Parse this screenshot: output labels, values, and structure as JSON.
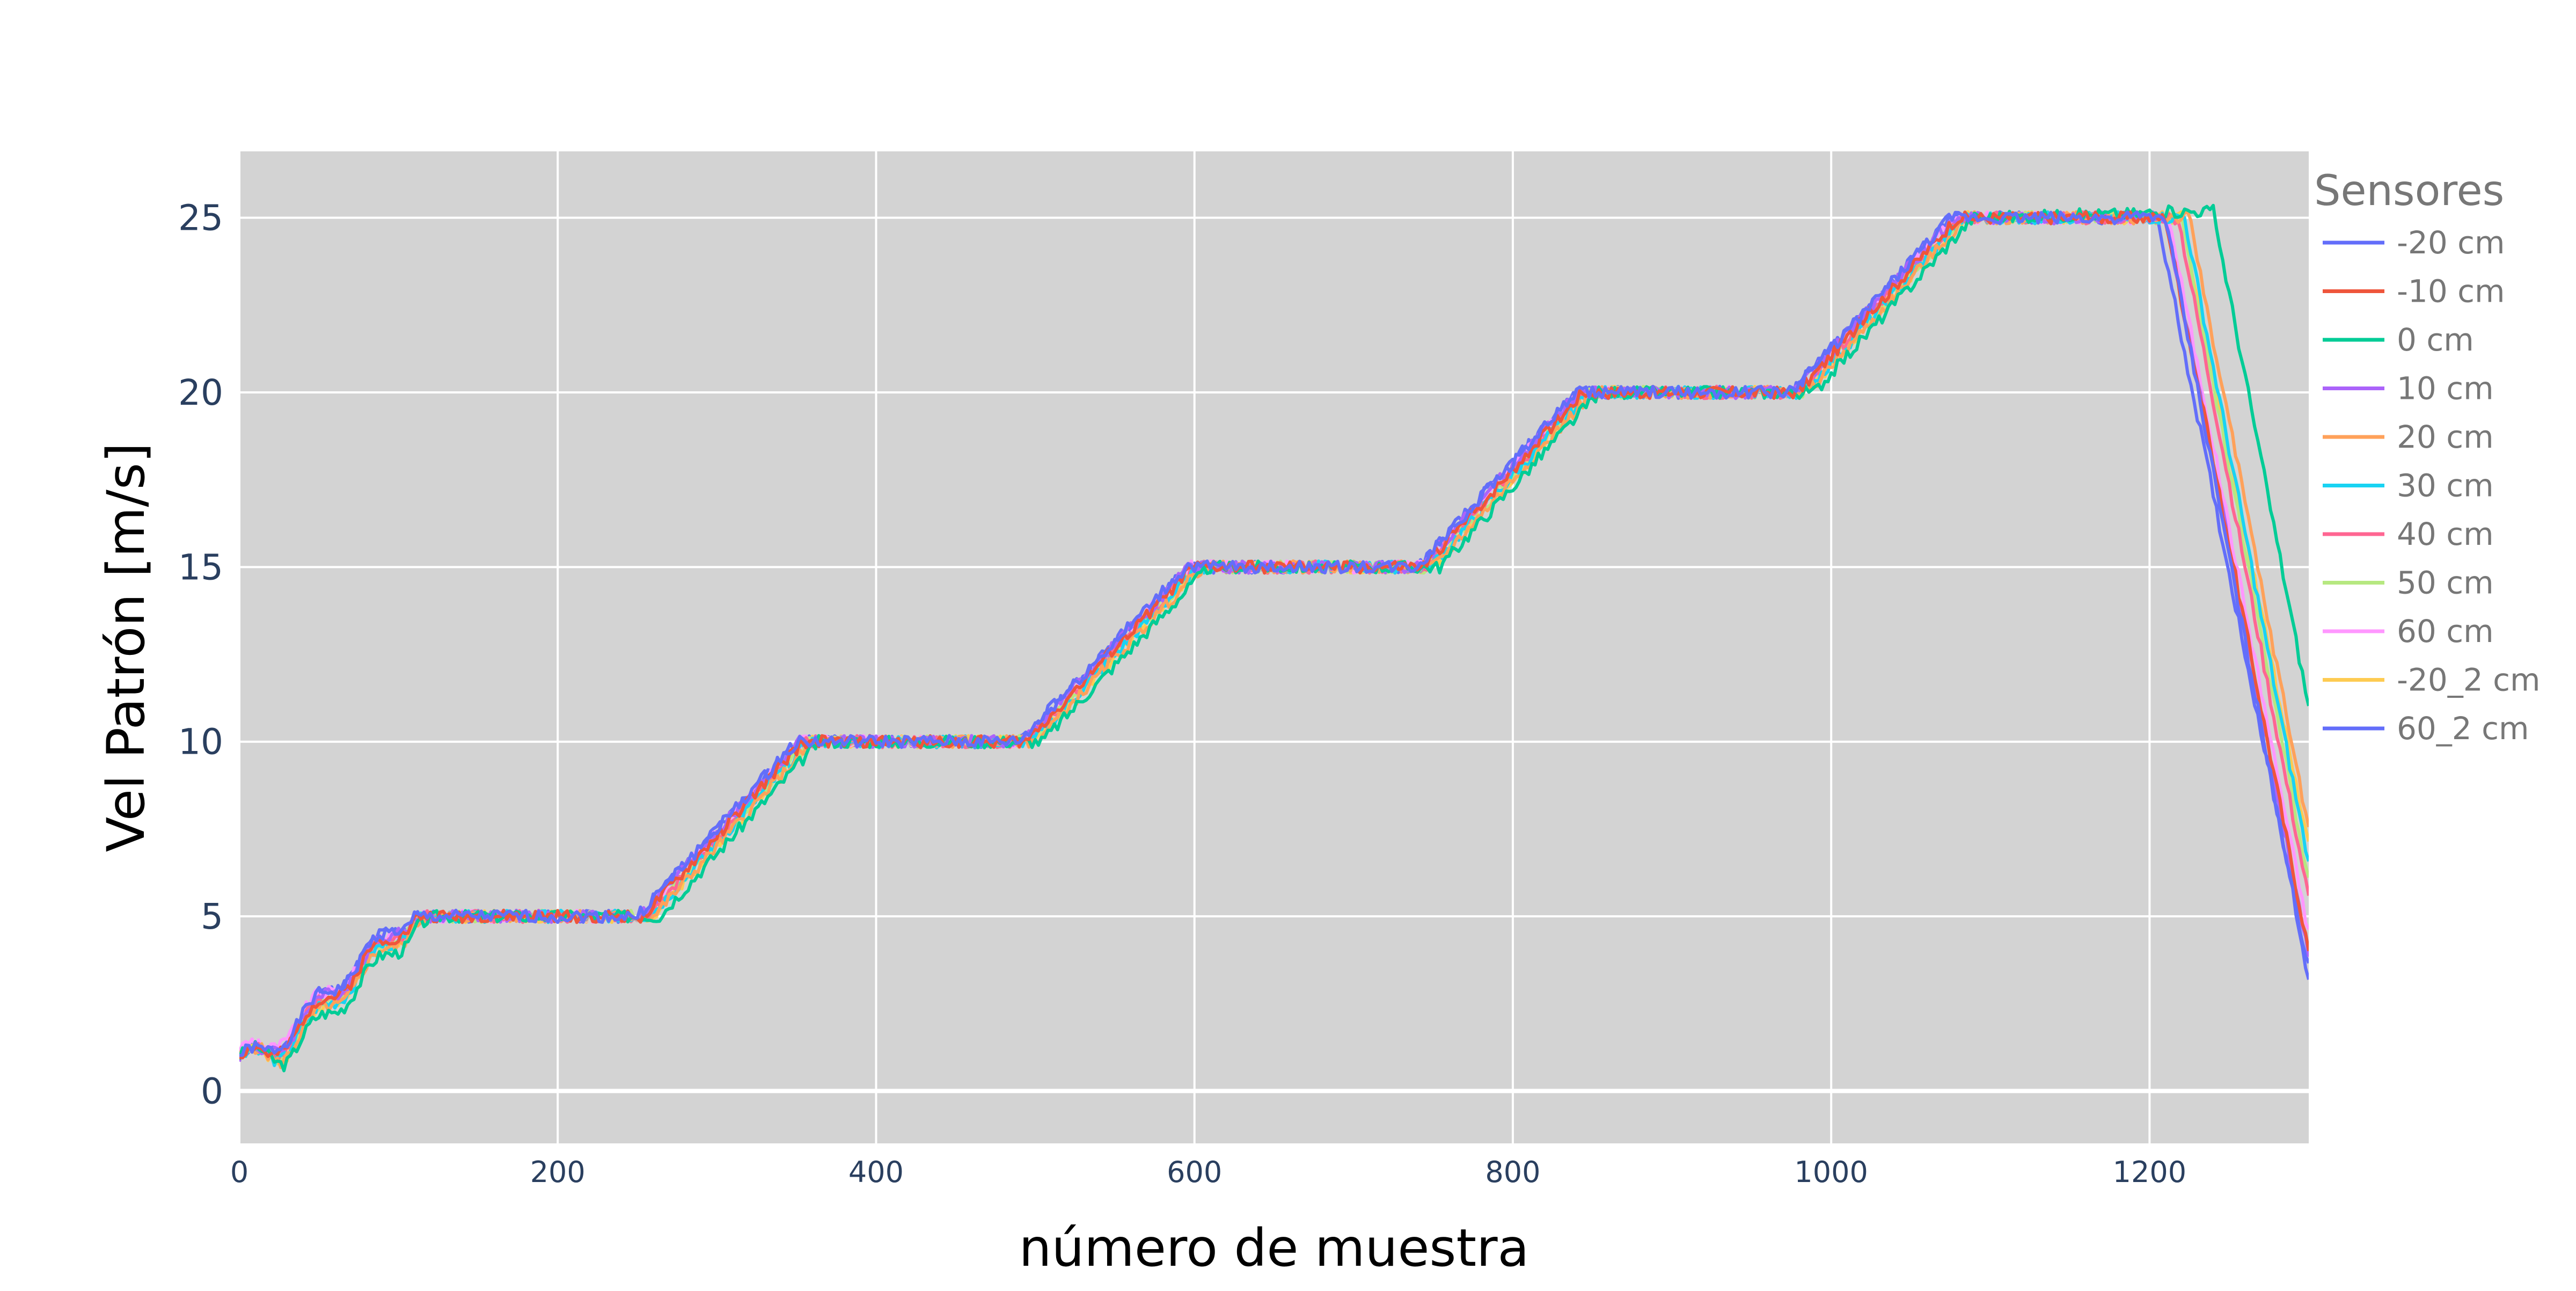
{
  "chart_data": {
    "type": "line",
    "title": "",
    "xlabel": "número de muestra",
    "ylabel": "Vel Patrón [m/s]",
    "xlim": [
      0,
      1300
    ],
    "ylim": [
      -1.5,
      26.9
    ],
    "x_ticks": [
      0,
      200,
      400,
      600,
      800,
      1000,
      1200
    ],
    "y_ticks": [
      0,
      5,
      10,
      15,
      20,
      25
    ],
    "grid": true,
    "plot_background": "#d3d3d3",
    "legend": {
      "title": "Sensores",
      "position": "right"
    },
    "series": [
      {
        "name": "-20 cm",
        "color": "#636efa",
        "lag": 0,
        "noise_seed": 1,
        "points": [
          [
            0,
            1.0
          ],
          [
            15,
            1.0
          ],
          [
            100,
            4.8
          ],
          [
            110,
            5.0
          ],
          [
            250,
            5.0
          ],
          [
            350,
            10.0
          ],
          [
            490,
            10.0
          ],
          [
            595,
            15.0
          ],
          [
            740,
            15.0
          ],
          [
            840,
            20.0
          ],
          [
            975,
            20.0
          ],
          [
            1075,
            25.0
          ],
          [
            1210,
            25.0
          ],
          [
            1300,
            3.2
          ]
        ]
      },
      {
        "name": "-10 cm",
        "color": "#ef553b",
        "lag": 4,
        "noise_seed": 2,
        "points": [
          [
            0,
            1.0
          ],
          [
            15,
            1.0
          ],
          [
            100,
            4.8
          ],
          [
            110,
            5.0
          ],
          [
            250,
            5.0
          ],
          [
            350,
            10.0
          ],
          [
            490,
            10.0
          ],
          [
            595,
            15.0
          ],
          [
            740,
            15.0
          ],
          [
            840,
            20.0
          ],
          [
            975,
            20.0
          ],
          [
            1075,
            25.0
          ],
          [
            1210,
            25.0
          ],
          [
            1300,
            4.0
          ]
        ]
      },
      {
        "name": "0 cm",
        "color": "#00cc96",
        "lag": 14,
        "noise_seed": 3,
        "points": [
          [
            0,
            1.0
          ],
          [
            15,
            1.0
          ],
          [
            100,
            4.8
          ],
          [
            110,
            5.0
          ],
          [
            250,
            5.0
          ],
          [
            350,
            10.0
          ],
          [
            490,
            10.0
          ],
          [
            595,
            15.0
          ],
          [
            740,
            15.0
          ],
          [
            840,
            20.0
          ],
          [
            975,
            20.0
          ],
          [
            1075,
            25.0
          ],
          [
            1240,
            25.2
          ],
          [
            1300,
            11.0
          ]
        ]
      },
      {
        "name": "10 cm",
        "color": "#ab63fa",
        "lag": 2,
        "noise_seed": 4,
        "points": [
          [
            0,
            1.0
          ],
          [
            15,
            1.0
          ],
          [
            100,
            4.8
          ],
          [
            110,
            5.0
          ],
          [
            250,
            5.0
          ],
          [
            350,
            10.0
          ],
          [
            490,
            10.0
          ],
          [
            595,
            15.0
          ],
          [
            740,
            15.0
          ],
          [
            840,
            20.0
          ],
          [
            975,
            20.0
          ],
          [
            1075,
            25.0
          ],
          [
            1210,
            25.0
          ],
          [
            1300,
            3.8
          ]
        ]
      },
      {
        "name": "20 cm",
        "color": "#ffa15a",
        "lag": 10,
        "noise_seed": 5,
        "points": [
          [
            0,
            1.0
          ],
          [
            15,
            1.0
          ],
          [
            100,
            4.8
          ],
          [
            110,
            5.0
          ],
          [
            250,
            5.0
          ],
          [
            350,
            10.0
          ],
          [
            490,
            10.0
          ],
          [
            595,
            15.0
          ],
          [
            740,
            15.0
          ],
          [
            840,
            20.0
          ],
          [
            975,
            20.0
          ],
          [
            1075,
            25.0
          ],
          [
            1225,
            25.0
          ],
          [
            1300,
            7.5
          ]
        ]
      },
      {
        "name": "30 cm",
        "color": "#19d3f3",
        "lag": 8,
        "noise_seed": 6,
        "points": [
          [
            0,
            1.0
          ],
          [
            15,
            1.0
          ],
          [
            100,
            4.8
          ],
          [
            110,
            5.0
          ],
          [
            250,
            5.0
          ],
          [
            350,
            10.0
          ],
          [
            490,
            10.0
          ],
          [
            595,
            15.0
          ],
          [
            740,
            15.0
          ],
          [
            840,
            20.0
          ],
          [
            975,
            20.0
          ],
          [
            1075,
            25.0
          ],
          [
            1222,
            25.0
          ],
          [
            1300,
            6.5
          ]
        ]
      },
      {
        "name": "40 cm",
        "color": "#ff6692",
        "lag": 5,
        "noise_seed": 7,
        "points": [
          [
            0,
            1.0
          ],
          [
            15,
            1.0
          ],
          [
            100,
            4.8
          ],
          [
            110,
            5.0
          ],
          [
            250,
            5.0
          ],
          [
            350,
            10.0
          ],
          [
            490,
            10.0
          ],
          [
            595,
            15.0
          ],
          [
            740,
            15.0
          ],
          [
            840,
            20.0
          ],
          [
            975,
            20.0
          ],
          [
            1075,
            25.0
          ],
          [
            1218,
            25.0
          ],
          [
            1300,
            5.5
          ]
        ]
      },
      {
        "name": "50 cm",
        "color": "#b6e880",
        "lag": 7,
        "noise_seed": 8,
        "points": [
          [
            0,
            1.0
          ],
          [
            15,
            1.0
          ],
          [
            100,
            4.8
          ],
          [
            110,
            5.0
          ],
          [
            250,
            5.0
          ],
          [
            350,
            10.0
          ],
          [
            490,
            10.0
          ],
          [
            595,
            15.0
          ],
          [
            740,
            15.0
          ],
          [
            840,
            20.0
          ],
          [
            975,
            20.0
          ],
          [
            1075,
            25.0
          ],
          [
            1220,
            25.0
          ],
          [
            1300,
            6.0
          ]
        ]
      },
      {
        "name": "60 cm",
        "color": "#ff97ff",
        "lag": 3,
        "noise_seed": 9,
        "points": [
          [
            0,
            1.2
          ],
          [
            15,
            1.2
          ],
          [
            100,
            4.8
          ],
          [
            110,
            5.0
          ],
          [
            250,
            5.0
          ],
          [
            350,
            10.0
          ],
          [
            490,
            10.0
          ],
          [
            595,
            15.0
          ],
          [
            740,
            15.0
          ],
          [
            840,
            20.0
          ],
          [
            975,
            20.0
          ],
          [
            1075,
            25.0
          ],
          [
            1212,
            25.0
          ],
          [
            1300,
            4.5
          ]
        ]
      },
      {
        "name": "-20_2 cm",
        "color": "#fecb52",
        "lag": 9,
        "noise_seed": 10,
        "points": [
          [
            0,
            1.0
          ],
          [
            15,
            1.0
          ],
          [
            100,
            4.8
          ],
          [
            110,
            5.0
          ],
          [
            250,
            5.0
          ],
          [
            350,
            10.0
          ],
          [
            490,
            10.0
          ],
          [
            595,
            15.0
          ],
          [
            740,
            15.0
          ],
          [
            840,
            20.0
          ],
          [
            975,
            20.0
          ],
          [
            1075,
            25.0
          ],
          [
            1220,
            25.0
          ],
          [
            1300,
            7.0
          ]
        ]
      },
      {
        "name": "60_2 cm",
        "color": "#636efa",
        "lag": 0,
        "noise_seed": 11,
        "points": [
          [
            0,
            1.0
          ],
          [
            15,
            1.0
          ],
          [
            100,
            4.8
          ],
          [
            110,
            5.0
          ],
          [
            250,
            5.0
          ],
          [
            350,
            10.0
          ],
          [
            490,
            10.0
          ],
          [
            595,
            15.0
          ],
          [
            740,
            15.0
          ],
          [
            840,
            20.0
          ],
          [
            975,
            20.0
          ],
          [
            1075,
            25.0
          ],
          [
            1205,
            25.0
          ],
          [
            1300,
            3.5
          ]
        ]
      }
    ]
  }
}
